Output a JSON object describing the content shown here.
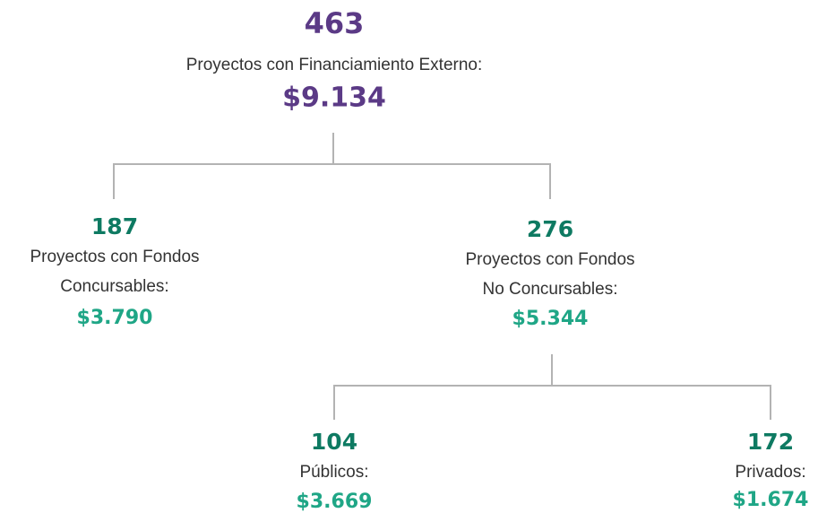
{
  "nodes": [
    {
      "count": "463",
      "label": [
        "Proyectos con Financiamiento Externo:"
      ],
      "amount": "$9.134"
    },
    {
      "count": "187",
      "label": [
        "Proyectos con Fondos",
        "Concursables:"
      ],
      "amount": "$3.790"
    },
    {
      "count": "276",
      "label": [
        "Proyectos con Fondos",
        "No Concursables:"
      ],
      "amount": "$5.344"
    },
    {
      "count": "104",
      "label": [
        "Públicos:"
      ],
      "amount": "$3.669"
    },
    {
      "count": "172",
      "label": [
        "Privados:"
      ],
      "amount": "$1.674"
    }
  ]
}
